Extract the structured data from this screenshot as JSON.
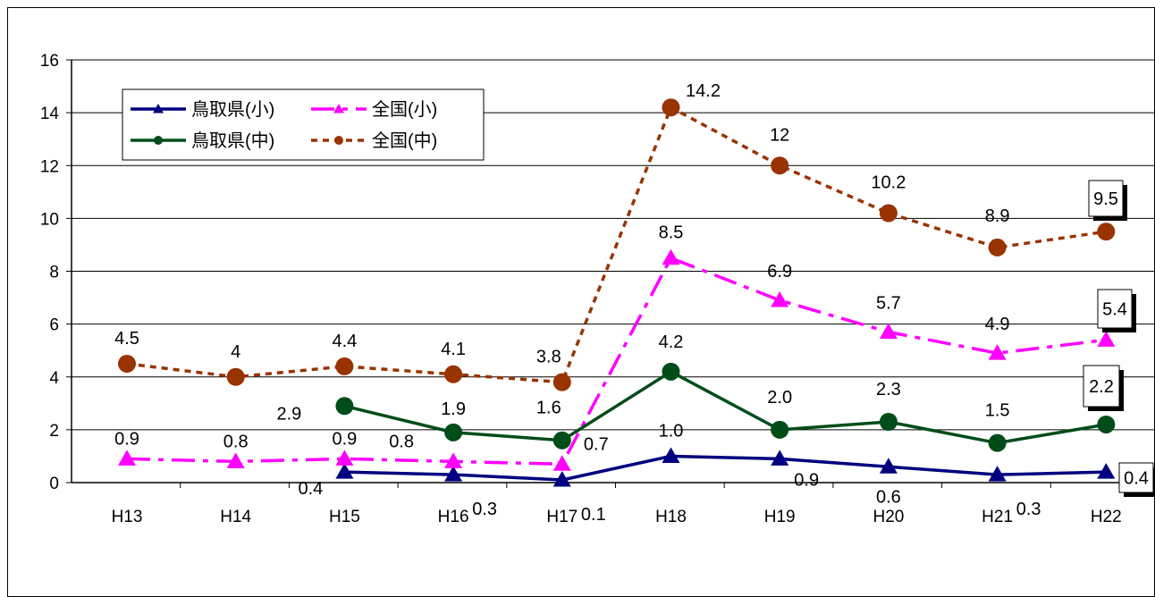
{
  "chart_data": {
    "type": "line",
    "categories": [
      "H13",
      "H14",
      "H15",
      "H16",
      "H17",
      "H18",
      "H19",
      "H20",
      "H21",
      "H22"
    ],
    "ylim": [
      0,
      16
    ],
    "yticks": [
      "0",
      "2",
      "4",
      "6",
      "8",
      "10",
      "12",
      "14",
      "16"
    ],
    "grid": true,
    "legend_position": "top-left",
    "series": [
      {
        "name": "鳥取県(小)",
        "color": "#000080",
        "marker": "triangle",
        "dash": "solid",
        "values": [
          null,
          null,
          0.4,
          0.3,
          0.1,
          1.0,
          0.9,
          0.6,
          0.3,
          0.4
        ],
        "labels": [
          "",
          "",
          "0.4",
          "0.3",
          "0.1",
          "1.0",
          "0.9",
          "0.6",
          "0.3",
          "0.4"
        ]
      },
      {
        "name": "全国(小)",
        "color": "#ff00ff",
        "marker": "triangle",
        "dash": "dashdot",
        "values": [
          0.9,
          0.8,
          0.9,
          0.8,
          0.7,
          8.5,
          6.9,
          5.7,
          4.9,
          5.4
        ],
        "labels": [
          "0.9",
          "0.8",
          "0.9",
          "0.8",
          "0.7",
          "8.5",
          "6.9",
          "5.7",
          "4.9",
          "5.4"
        ]
      },
      {
        "name": "鳥取県(中)",
        "color": "#004d1a",
        "marker": "circle",
        "dash": "solid",
        "values": [
          null,
          null,
          2.9,
          1.9,
          1.6,
          4.2,
          2.0,
          2.3,
          1.5,
          2.2
        ],
        "labels": [
          "",
          "",
          "2.9",
          "1.9",
          "1.6",
          "4.2",
          "2.0",
          "2.3",
          "1.5",
          "2.2"
        ]
      },
      {
        "name": "全国(中)",
        "color": "#993300",
        "marker": "circle",
        "dash": "dotted",
        "values": [
          4.5,
          4.0,
          4.4,
          4.1,
          3.8,
          14.2,
          12.0,
          10.2,
          8.9,
          9.5
        ],
        "labels": [
          "4.5",
          "4",
          "4.4",
          "4.1",
          "3.8",
          "14.2",
          "12",
          "10.2",
          "8.9",
          "9.5"
        ]
      }
    ]
  }
}
